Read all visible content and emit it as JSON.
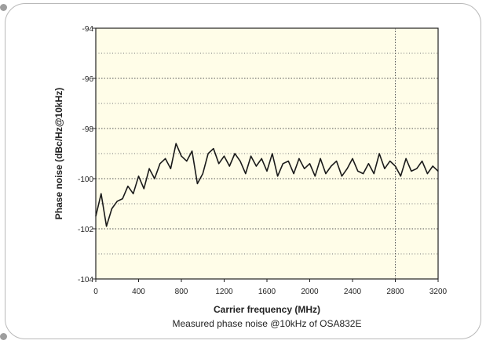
{
  "chart_data": {
    "type": "line",
    "title": "",
    "caption": "Measured phase noise @10kHz of OSA832E",
    "xlabel": "Carrier frequency (MHz)",
    "ylabel": "Phase noise (dBc/Hz@10kHz)",
    "xlim": [
      0,
      3200
    ],
    "ylim": [
      -104,
      -94
    ],
    "xticks": [
      0,
      400,
      800,
      1200,
      1600,
      2000,
      2400,
      2800,
      3200
    ],
    "xtick_labels": [
      "0",
      "400",
      "800",
      "1200",
      "1600",
      "2000",
      "2400",
      "2800",
      "3200"
    ],
    "yticks": [
      -104,
      -102,
      -100,
      -98,
      -96,
      -94
    ],
    "ytick_labels": [
      "-104",
      "-102",
      "-100",
      "-98",
      "-96",
      "-94"
    ],
    "grid": true,
    "series": [
      {
        "color": "#1a1a1a",
        "x": [
          0,
          50,
          100,
          150,
          200,
          250,
          300,
          350,
          400,
          450,
          500,
          550,
          600,
          650,
          700,
          750,
          800,
          850,
          900,
          950,
          1000,
          1050,
          1100,
          1150,
          1200,
          1250,
          1300,
          1350,
          1400,
          1450,
          1500,
          1550,
          1600,
          1650,
          1700,
          1750,
          1800,
          1850,
          1900,
          1950,
          2000,
          2050,
          2100,
          2150,
          2200,
          2250,
          2300,
          2350,
          2400,
          2450,
          2500,
          2550,
          2600,
          2650,
          2700,
          2750,
          2800,
          2850,
          2900,
          2950,
          3000,
          3050,
          3100,
          3150,
          3200
        ],
        "y": [
          -101.5,
          -100.6,
          -101.9,
          -101.2,
          -100.9,
          -100.8,
          -100.3,
          -100.6,
          -99.9,
          -100.4,
          -99.6,
          -100.0,
          -99.4,
          -99.2,
          -99.6,
          -98.6,
          -99.1,
          -99.3,
          -98.9,
          -100.2,
          -99.8,
          -99.0,
          -98.8,
          -99.4,
          -99.1,
          -99.5,
          -99.0,
          -99.3,
          -99.8,
          -99.1,
          -99.5,
          -99.2,
          -99.7,
          -99.0,
          -99.9,
          -99.4,
          -99.3,
          -99.8,
          -99.2,
          -99.6,
          -99.4,
          -99.9,
          -99.2,
          -99.8,
          -99.5,
          -99.3,
          -99.9,
          -99.6,
          -99.2,
          -99.7,
          -99.8,
          -99.4,
          -99.8,
          -99.0,
          -99.6,
          -99.3,
          -99.5,
          -99.9,
          -99.2,
          -99.7,
          -99.6,
          -99.3,
          -99.8,
          -99.5,
          -99.7
        ]
      }
    ]
  }
}
